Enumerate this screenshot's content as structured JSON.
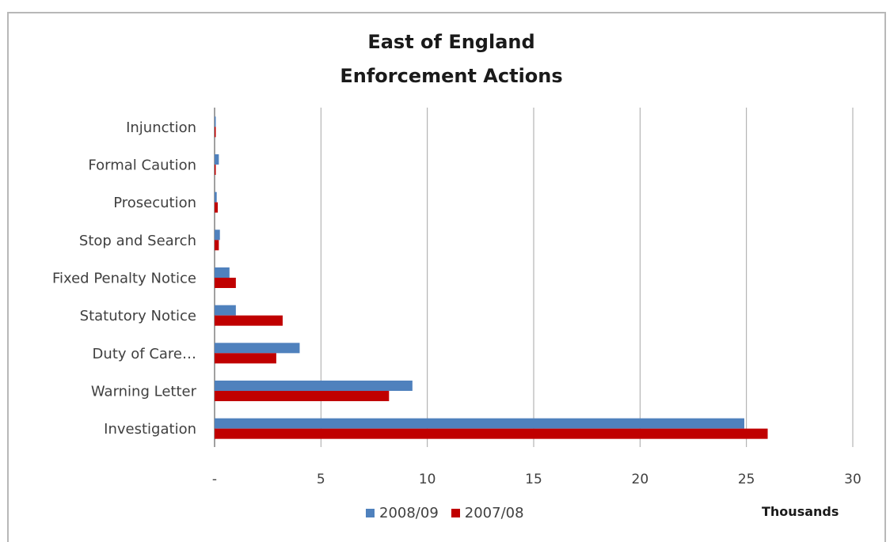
{
  "chart_data": {
    "type": "bar",
    "orientation": "horizontal",
    "title_line1": "East of England",
    "title_line2": "Enforcement Actions",
    "categories": [
      "Injunction",
      "Formal Caution",
      "Prosecution",
      "Stop and Search",
      "Fixed Penalty Notice",
      "Statutory Notice",
      "Duty of Care…",
      "Warning Letter",
      "Investigation"
    ],
    "series": [
      {
        "name": "2008/09",
        "color": "#4f81bd",
        "values": [
          0.02,
          0.2,
          0.1,
          0.25,
          0.7,
          1.0,
          4.0,
          9.3,
          24.9
        ]
      },
      {
        "name": "2007/08",
        "color": "#c00000",
        "values": [
          0.01,
          0.05,
          0.15,
          0.2,
          1.0,
          3.2,
          2.9,
          8.2,
          26.0
        ]
      }
    ],
    "xlim": [
      0,
      30
    ],
    "xticks": [
      0,
      5,
      10,
      15,
      20,
      25,
      30
    ],
    "xtick_labels": [
      "-",
      "5",
      "10",
      "15",
      "20",
      "25",
      "30"
    ],
    "units_label": "Thousands",
    "grid": "vertical",
    "legend_position": "bottom"
  }
}
